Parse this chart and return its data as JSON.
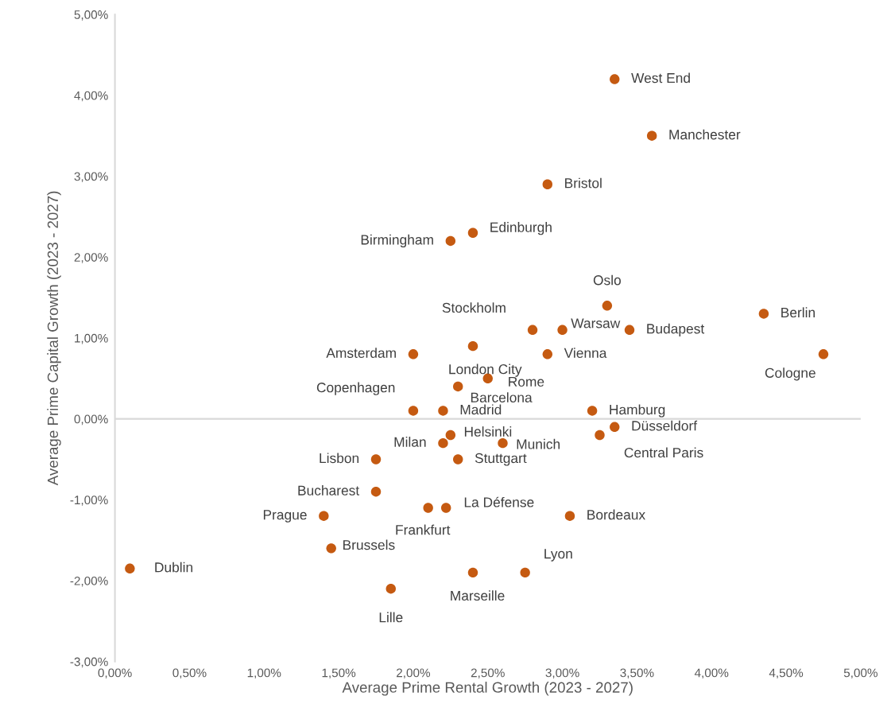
{
  "chart_data": {
    "type": "scatter",
    "xlabel": "Average Prime Rental Growth (2023 - 2027)",
    "ylabel": "Average Prime Capital Growth (2023 - 2027)",
    "x": [
      3.35,
      3.6,
      2.9,
      2.4,
      2.25,
      3.3,
      4.35,
      2.8,
      3.0,
      3.45,
      2.0,
      2.4,
      2.9,
      4.75,
      2.5,
      2.3,
      2.0,
      2.2,
      3.2,
      3.35,
      2.25,
      2.2,
      2.6,
      3.25,
      1.75,
      2.3,
      1.75,
      2.22,
      2.1,
      1.4,
      3.05,
      1.45,
      0.1,
      2.4,
      2.75,
      1.85
    ],
    "values": [
      4.2,
      3.5,
      2.9,
      2.3,
      2.2,
      1.4,
      1.3,
      1.1,
      1.1,
      1.1,
      0.8,
      0.9,
      0.8,
      0.8,
      0.5,
      0.4,
      0.1,
      0.1,
      0.1,
      -0.1,
      -0.2,
      -0.3,
      -0.3,
      -0.2,
      -0.5,
      -0.5,
      -0.9,
      -1.1,
      -1.1,
      -1.2,
      -1.2,
      -1.6,
      -1.85,
      -1.9,
      -1.9,
      -2.1
    ],
    "color": "#c55a11",
    "marker": "circle",
    "grid": false,
    "legend": false,
    "xlim": [
      0,
      5
    ],
    "ylim": [
      -3,
      5
    ],
    "xticks": [
      {
        "value": 0,
        "label": "0,00%"
      },
      {
        "value": 0.5,
        "label": "0,50%"
      },
      {
        "value": 1,
        "label": "1,00%"
      },
      {
        "value": 1.5,
        "label": "1,50%"
      },
      {
        "value": 2,
        "label": "2,00%"
      },
      {
        "value": 2.5,
        "label": "2,50%"
      },
      {
        "value": 3,
        "label": "3,00%"
      },
      {
        "value": 3.5,
        "label": "3,50%"
      },
      {
        "value": 4,
        "label": "4,00%"
      },
      {
        "value": 4.5,
        "label": "4,50%"
      },
      {
        "value": 5,
        "label": "5,00%"
      }
    ],
    "yticks": [
      {
        "value": -3,
        "label": "-3,00%"
      },
      {
        "value": -2,
        "label": "-2,00%"
      },
      {
        "value": -1,
        "label": "-1,00%"
      },
      {
        "value": 0,
        "label": "0,00%"
      },
      {
        "value": 1,
        "label": "1,00%"
      },
      {
        "value": 2,
        "label": "2,00%"
      },
      {
        "value": 3,
        "label": "3,00%"
      },
      {
        "value": 4,
        "label": "4,00%"
      },
      {
        "value": 5,
        "label": "5,00%"
      }
    ],
    "ref_lines": [
      {
        "axis": "y",
        "value": 0,
        "color": "#d9d9d9"
      }
    ],
    "annotations": [
      {
        "text": "West End",
        "x": 3.35,
        "y": 4.2
      },
      {
        "text": "Manchester",
        "x": 3.6,
        "y": 3.5
      },
      {
        "text": "Bristol",
        "x": 2.9,
        "y": 2.9
      },
      {
        "text": "Edinburgh",
        "x": 2.4,
        "y": 2.3
      },
      {
        "text": "Birmingham",
        "x": 2.25,
        "y": 2.2
      },
      {
        "text": "Oslo",
        "x": 3.3,
        "y": 1.4
      },
      {
        "text": "Berlin",
        "x": 4.35,
        "y": 1.3
      },
      {
        "text": "Stockholm",
        "x": 2.8,
        "y": 1.1
      },
      {
        "text": "Warsaw",
        "x": 3.0,
        "y": 1.1
      },
      {
        "text": "Budapest",
        "x": 3.45,
        "y": 1.1
      },
      {
        "text": "Amsterdam",
        "x": 2.0,
        "y": 0.8
      },
      {
        "text": "London City",
        "x": 2.4,
        "y": 0.9
      },
      {
        "text": "Vienna",
        "x": 2.9,
        "y": 0.8
      },
      {
        "text": "Cologne",
        "x": 4.75,
        "y": 0.8
      },
      {
        "text": "Rome",
        "x": 2.5,
        "y": 0.5
      },
      {
        "text": "Barcelona",
        "x": 2.3,
        "y": 0.4
      },
      {
        "text": "Copenhagen",
        "x": 2.0,
        "y": 0.1
      },
      {
        "text": "Madrid",
        "x": 2.2,
        "y": 0.1
      },
      {
        "text": "Hamburg",
        "x": 3.2,
        "y": 0.1
      },
      {
        "text": "Düsseldorf",
        "x": 3.35,
        "y": -0.1
      },
      {
        "text": "Helsinki",
        "x": 2.25,
        "y": -0.2
      },
      {
        "text": "Milan",
        "x": 2.2,
        "y": -0.3
      },
      {
        "text": "Munich",
        "x": 2.6,
        "y": -0.3
      },
      {
        "text": "Central Paris",
        "x": 3.25,
        "y": -0.2
      },
      {
        "text": "Lisbon",
        "x": 1.75,
        "y": -0.5
      },
      {
        "text": "Stuttgart",
        "x": 2.3,
        "y": -0.5
      },
      {
        "text": "Bucharest",
        "x": 1.75,
        "y": -0.9
      },
      {
        "text": "La Défense",
        "x": 2.22,
        "y": -1.1
      },
      {
        "text": "Frankfurt",
        "x": 2.1,
        "y": -1.1
      },
      {
        "text": "Prague",
        "x": 1.4,
        "y": -1.2
      },
      {
        "text": "Bordeaux",
        "x": 3.05,
        "y": -1.2
      },
      {
        "text": "Brussels",
        "x": 1.45,
        "y": -1.6
      },
      {
        "text": "Dublin",
        "x": 0.1,
        "y": -1.85
      },
      {
        "text": "Marseille",
        "x": 2.4,
        "y": -1.9
      },
      {
        "text": "Lyon",
        "x": 2.75,
        "y": -1.9
      },
      {
        "text": "Lille",
        "x": 1.85,
        "y": -2.1
      }
    ]
  }
}
